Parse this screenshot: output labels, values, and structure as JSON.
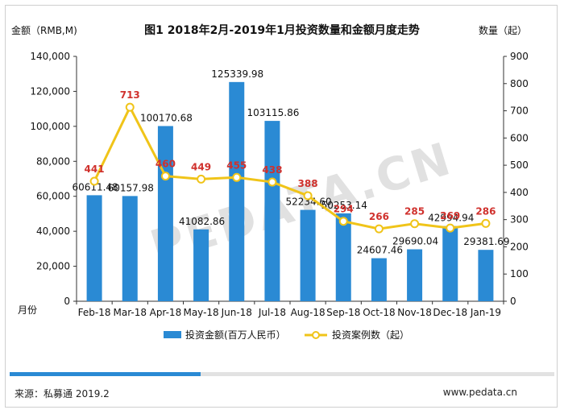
{
  "chart_data": {
    "type": "bar+line",
    "title": "图1 2018年2月-2019年1月投资数量和金额月度走势",
    "y_left_label": "金额（RMB,M)",
    "y_right_label": "数量（起）",
    "x_label": "月份",
    "categories": [
      "Feb-18",
      "Mar-18",
      "Apr-18",
      "May-18",
      "Jun-18",
      "Jul-18",
      "Aug-18",
      "Sep-18",
      "Oct-18",
      "Nov-18",
      "Dec-18",
      "Jan-19"
    ],
    "y_left_ticks": [
      "0",
      "20,000",
      "40,000",
      "60,000",
      "80,000",
      "100,000",
      "120,000",
      "140,000"
    ],
    "y_right_ticks": [
      "0",
      "100",
      "200",
      "300",
      "400",
      "500",
      "600",
      "700",
      "800",
      "900"
    ],
    "y_left_range": [
      0,
      140000
    ],
    "y_right_range": [
      0,
      900
    ],
    "series": [
      {
        "name": "投资金额(百万人民币）",
        "type": "bar",
        "color": "#2a8ad4",
        "values": [
          60611.48,
          60157.98,
          100170.68,
          41082.86,
          125339.98,
          103115.86,
          52234.6,
          50253.14,
          24607.46,
          29690.04,
          42994.94,
          29381.69
        ],
        "labels": [
          "60611.48",
          "60157.98",
          "100170.68",
          "41082.86",
          "125339.98",
          "103115.86",
          "52234.60",
          "50253.14",
          "24607.46",
          "29690.04",
          "42994.94",
          "29381.69"
        ]
      },
      {
        "name": "投资案例数（起）",
        "type": "line",
        "color": "#f0c419",
        "label_color": "#d0312d",
        "values": [
          441,
          713,
          460,
          449,
          455,
          438,
          388,
          294,
          266,
          285,
          269,
          286
        ],
        "labels": [
          "441",
          "713",
          "460",
          "449",
          "455",
          "438",
          "388",
          "294",
          "266",
          "285",
          "269",
          "286"
        ]
      }
    ],
    "legend_position": "bottom"
  },
  "watermark": "PEDATA.CN",
  "progress": 0.35,
  "footer": {
    "source": "来源：私募通 2019.2",
    "website": "www.pedata.cn"
  }
}
